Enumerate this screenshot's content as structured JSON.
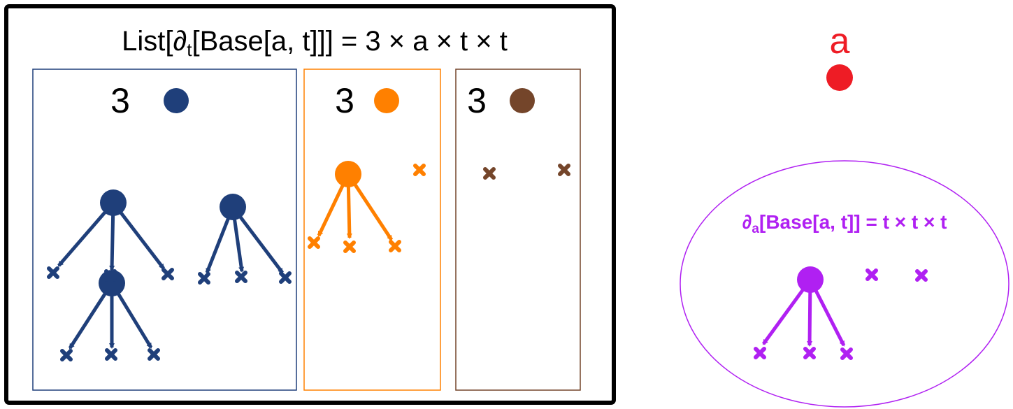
{
  "colors": {
    "frame": "#000000",
    "blue": "#1f3f7a",
    "orange": "#ff8000",
    "brown": "#74452a",
    "red": "#ee1c25",
    "purple": "#b020f2"
  },
  "main_formula": {
    "prefix": "List[∂",
    "sub": "t",
    "suffix": "[Base[a, t]]] = 3 × a × t × t"
  },
  "panels": [
    {
      "name": "blue",
      "coefficient": "3"
    },
    {
      "name": "orange",
      "coefficient": "3"
    },
    {
      "name": "brown",
      "coefficient": "3"
    }
  ],
  "variable": {
    "label": "a"
  },
  "derivative": {
    "prefix": "∂",
    "sub": "a",
    "suffix": "[Base[a, t]] = t × t × t"
  },
  "icons": {
    "node": "filled-circle",
    "leaf": "cross-mark",
    "edge": "arrow"
  }
}
